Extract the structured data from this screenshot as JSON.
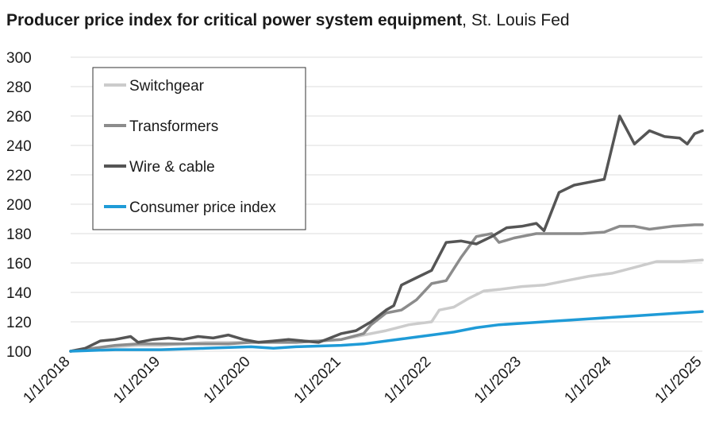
{
  "title": {
    "bold": "Producer price index for critical power system equipment",
    "rest": ", St. Louis Fed"
  },
  "chart_data": {
    "type": "line",
    "title": "Producer price index for critical power system equipment, St. Louis Fed",
    "xlabel": "",
    "ylabel": "",
    "xlim": [
      "1/1/2018",
      "1/1/2025"
    ],
    "ylim": [
      100,
      300
    ],
    "yticks": [
      100,
      120,
      140,
      160,
      180,
      200,
      220,
      240,
      260,
      280,
      300
    ],
    "xticks": [
      "1/1/2018",
      "1/1/2019",
      "1/1/2020",
      "1/1/2021",
      "1/1/2022",
      "1/1/2023",
      "1/1/2024",
      "1/1/2025"
    ],
    "grid": "horizontal",
    "legend_position": "top-left",
    "series": [
      {
        "name": "Switchgear",
        "color": "#cccccc",
        "points": [
          [
            "1/1/2018",
            100
          ],
          [
            "4/1/2018",
            102
          ],
          [
            "7/1/2018",
            103
          ],
          [
            "10/1/2018",
            104
          ],
          [
            "1/1/2019",
            104
          ],
          [
            "4/1/2019",
            105
          ],
          [
            "7/1/2019",
            106
          ],
          [
            "10/1/2019",
            106
          ],
          [
            "1/1/2020",
            106
          ],
          [
            "4/1/2020",
            107
          ],
          [
            "7/1/2020",
            107
          ],
          [
            "10/1/2020",
            107
          ],
          [
            "1/1/2021",
            108
          ],
          [
            "4/1/2021",
            111
          ],
          [
            "7/1/2021",
            114
          ],
          [
            "10/1/2021",
            118
          ],
          [
            "1/1/2022",
            120
          ],
          [
            "2/1/2022",
            128
          ],
          [
            "4/1/2022",
            130
          ],
          [
            "6/1/2022",
            136
          ],
          [
            "8/1/2022",
            141
          ],
          [
            "10/1/2022",
            142
          ],
          [
            "1/1/2023",
            144
          ],
          [
            "4/1/2023",
            145
          ],
          [
            "7/1/2023",
            148
          ],
          [
            "10/1/2023",
            151
          ],
          [
            "1/1/2024",
            153
          ],
          [
            "4/1/2024",
            157
          ],
          [
            "7/1/2024",
            161
          ],
          [
            "10/1/2024",
            161
          ],
          [
            "1/1/2025",
            162
          ]
        ]
      },
      {
        "name": "Transformers",
        "color": "#8c8c8c",
        "points": [
          [
            "1/1/2018",
            100
          ],
          [
            "4/1/2018",
            102
          ],
          [
            "7/1/2018",
            104
          ],
          [
            "10/1/2018",
            105
          ],
          [
            "1/1/2019",
            105
          ],
          [
            "4/1/2019",
            105
          ],
          [
            "7/1/2019",
            105
          ],
          [
            "10/1/2019",
            105
          ],
          [
            "1/1/2020",
            106
          ],
          [
            "4/1/2020",
            106
          ],
          [
            "7/1/2020",
            106
          ],
          [
            "10/1/2020",
            107
          ],
          [
            "1/1/2021",
            108
          ],
          [
            "4/1/2021",
            112
          ],
          [
            "5/1/2021",
            118
          ],
          [
            "7/1/2021",
            126
          ],
          [
            "9/1/2021",
            128
          ],
          [
            "11/1/2021",
            135
          ],
          [
            "1/1/2022",
            146
          ],
          [
            "3/1/2022",
            148
          ],
          [
            "5/1/2022",
            164
          ],
          [
            "7/1/2022",
            178
          ],
          [
            "9/1/2022",
            180
          ],
          [
            "10/1/2022",
            174
          ],
          [
            "12/1/2022",
            177
          ],
          [
            "3/1/2023",
            180
          ],
          [
            "6/1/2023",
            180
          ],
          [
            "9/1/2023",
            180
          ],
          [
            "12/1/2023",
            181
          ],
          [
            "2/1/2024",
            185
          ],
          [
            "4/1/2024",
            185
          ],
          [
            "6/1/2024",
            183
          ],
          [
            "9/1/2024",
            185
          ],
          [
            "12/1/2024",
            186
          ],
          [
            "1/1/2025",
            186
          ]
        ]
      },
      {
        "name": "Wire & cable",
        "color": "#555555",
        "points": [
          [
            "1/1/2018",
            100
          ],
          [
            "3/1/2018",
            102
          ],
          [
            "5/1/2018",
            107
          ],
          [
            "7/1/2018",
            108
          ],
          [
            "9/1/2018",
            110
          ],
          [
            "10/1/2018",
            106
          ],
          [
            "12/1/2018",
            108
          ],
          [
            "2/1/2019",
            109
          ],
          [
            "4/1/2019",
            108
          ],
          [
            "6/1/2019",
            110
          ],
          [
            "8/1/2019",
            109
          ],
          [
            "10/1/2019",
            111
          ],
          [
            "12/1/2019",
            108
          ],
          [
            "2/1/2020",
            106
          ],
          [
            "4/1/2020",
            107
          ],
          [
            "6/1/2020",
            108
          ],
          [
            "8/1/2020",
            107
          ],
          [
            "10/1/2020",
            106
          ],
          [
            "11/1/2020",
            108
          ],
          [
            "1/1/2021",
            112
          ],
          [
            "3/1/2021",
            114
          ],
          [
            "5/1/2021",
            120
          ],
          [
            "7/1/2021",
            128
          ],
          [
            "8/1/2021",
            131
          ],
          [
            "9/1/2021",
            145
          ],
          [
            "11/1/2021",
            150
          ],
          [
            "1/1/2022",
            155
          ],
          [
            "3/1/2022",
            174
          ],
          [
            "5/1/2022",
            175
          ],
          [
            "7/1/2022",
            173
          ],
          [
            "9/1/2022",
            178
          ],
          [
            "11/1/2022",
            184
          ],
          [
            "1/1/2023",
            185
          ],
          [
            "3/1/2023",
            187
          ],
          [
            "4/1/2023",
            182
          ],
          [
            "6/1/2023",
            208
          ],
          [
            "8/1/2023",
            213
          ],
          [
            "10/1/2023",
            215
          ],
          [
            "12/1/2023",
            217
          ],
          [
            "2/1/2024",
            260
          ],
          [
            "4/1/2024",
            241
          ],
          [
            "6/1/2024",
            250
          ],
          [
            "8/1/2024",
            246
          ],
          [
            "10/1/2024",
            245
          ],
          [
            "11/1/2024",
            241
          ],
          [
            "12/1/2024",
            248
          ],
          [
            "1/1/2025",
            250
          ]
        ]
      },
      {
        "name": "Consumer price index",
        "color": "#1f9bd7",
        "points": [
          [
            "1/1/2018",
            100
          ],
          [
            "7/1/2018",
            101
          ],
          [
            "1/1/2019",
            101
          ],
          [
            "7/1/2019",
            102
          ],
          [
            "1/1/2020",
            103
          ],
          [
            "4/1/2020",
            102
          ],
          [
            "7/1/2020",
            103
          ],
          [
            "1/1/2021",
            104
          ],
          [
            "4/1/2021",
            105
          ],
          [
            "7/1/2021",
            107
          ],
          [
            "10/1/2021",
            109
          ],
          [
            "1/1/2022",
            111
          ],
          [
            "4/1/2022",
            113
          ],
          [
            "7/1/2022",
            116
          ],
          [
            "10/1/2022",
            118
          ],
          [
            "1/1/2023",
            119
          ],
          [
            "4/1/2023",
            120
          ],
          [
            "7/1/2023",
            121
          ],
          [
            "10/1/2023",
            122
          ],
          [
            "1/1/2024",
            123
          ],
          [
            "4/1/2024",
            124
          ],
          [
            "7/1/2024",
            125
          ],
          [
            "10/1/2024",
            126
          ],
          [
            "1/1/2025",
            127
          ]
        ]
      }
    ]
  }
}
